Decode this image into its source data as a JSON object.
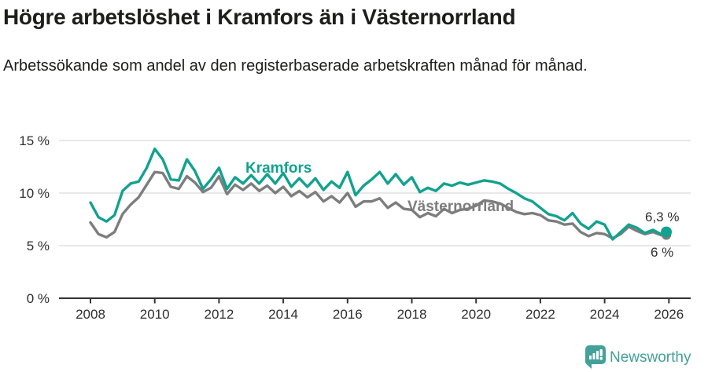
{
  "header": {
    "title": "Högre arbetslöshet i Kramfors än i Västernorrland",
    "subtitle": "Arbetssökande som andel av den registerbaserade arbetskraften månad för månad."
  },
  "chart_data": {
    "type": "line",
    "title": "Högre arbetslöshet i Kramfors än i Västernorrland",
    "subtitle": "Arbetssökande som andel av den registerbaserade arbetskraften månad för månad.",
    "grid": "horizontal",
    "legend_position": "inline-labels",
    "ylim": [
      0,
      15.5
    ],
    "xlim": [
      2007,
      2026.8
    ],
    "y_ticks": [
      0,
      5,
      10,
      15
    ],
    "y_tick_labels": [
      "0 %",
      "5 %",
      "10 %",
      "15 %"
    ],
    "x_ticks": [
      2008,
      2010,
      2012,
      2014,
      2016,
      2018,
      2020,
      2022,
      2024,
      2026
    ],
    "x_tick_labels": [
      "2008",
      "2010",
      "2012",
      "2014",
      "2016",
      "2018",
      "2020",
      "2022",
      "2024",
      "2026"
    ],
    "x": [
      2008,
      2008.25,
      2008.5,
      2008.75,
      2009,
      2009.25,
      2009.5,
      2009.75,
      2010,
      2010.25,
      2010.5,
      2010.75,
      2011,
      2011.25,
      2011.5,
      2011.75,
      2012,
      2012.25,
      2012.5,
      2012.75,
      2013,
      2013.25,
      2013.5,
      2013.75,
      2014,
      2014.25,
      2014.5,
      2014.75,
      2015,
      2015.25,
      2015.5,
      2015.75,
      2016,
      2016.25,
      2016.5,
      2016.75,
      2017,
      2017.25,
      2017.5,
      2017.75,
      2018,
      2018.25,
      2018.5,
      2018.75,
      2019,
      2019.25,
      2019.5,
      2019.75,
      2020,
      2020.25,
      2020.5,
      2020.75,
      2021,
      2021.25,
      2021.5,
      2021.75,
      2022,
      2022.25,
      2022.5,
      2022.75,
      2023,
      2023.25,
      2023.5,
      2023.75,
      2024,
      2024.25,
      2024.5,
      2024.75,
      2025,
      2025.25,
      2025.5,
      2025.75,
      2025.92
    ],
    "series": [
      {
        "name": "Kramfors",
        "color": "#12a28f",
        "end_label": "6,3 %",
        "end_value": 6.3,
        "values": [
          9.1,
          7.7,
          7.3,
          7.9,
          10.2,
          10.9,
          11.1,
          12.4,
          14.2,
          13.2,
          11.3,
          11.2,
          13.2,
          12.1,
          10.4,
          11.3,
          12.4,
          10.4,
          11.5,
          10.9,
          11.7,
          10.9,
          11.8,
          10.9,
          11.9,
          10.6,
          11.4,
          10.6,
          11.4,
          10.3,
          11.1,
          10.5,
          12.0,
          9.8,
          10.7,
          11.3,
          12.0,
          10.9,
          11.8,
          10.8,
          11.5,
          10.1,
          10.5,
          10.2,
          10.9,
          10.7,
          11.0,
          10.8,
          11.0,
          11.2,
          11.1,
          10.9,
          10.4,
          10.0,
          9.5,
          9.2,
          8.6,
          8.0,
          7.8,
          7.4,
          8.1,
          7.1,
          6.6,
          7.3,
          7.0,
          5.6,
          6.3,
          7.0,
          6.7,
          6.2,
          6.5,
          6.1,
          6.3
        ]
      },
      {
        "name": "Västernorrland",
        "color": "#7d7d7d",
        "end_label": "6 %",
        "end_value": 6.0,
        "values": [
          7.2,
          6.1,
          5.8,
          6.3,
          8.0,
          8.9,
          9.6,
          10.8,
          12.0,
          11.9,
          10.6,
          10.4,
          11.6,
          11.0,
          10.1,
          10.5,
          11.6,
          9.9,
          10.8,
          10.3,
          10.9,
          10.2,
          10.7,
          10.0,
          10.6,
          9.7,
          10.2,
          9.6,
          10.1,
          9.2,
          9.7,
          9.1,
          10.0,
          8.7,
          9.2,
          9.2,
          9.5,
          8.6,
          9.1,
          8.5,
          8.4,
          7.7,
          8.1,
          7.8,
          8.5,
          8.1,
          8.4,
          8.5,
          8.8,
          9.3,
          9.2,
          9.0,
          8.6,
          8.2,
          8.0,
          8.1,
          7.9,
          7.4,
          7.3,
          7.0,
          7.1,
          6.3,
          5.9,
          6.2,
          6.1,
          5.7,
          6.1,
          6.8,
          6.4,
          6.1,
          6.3,
          6.0,
          6.0
        ]
      }
    ],
    "colors": {
      "kramfors": "#12a28f",
      "vasternorrland": "#7d7d7d",
      "gridline": "#d9d9d9",
      "axis": "#333333",
      "tick_text": "#2f2f2f"
    }
  },
  "footer": {
    "brand": "Newsworthy",
    "brand_color": "#44a09a"
  }
}
